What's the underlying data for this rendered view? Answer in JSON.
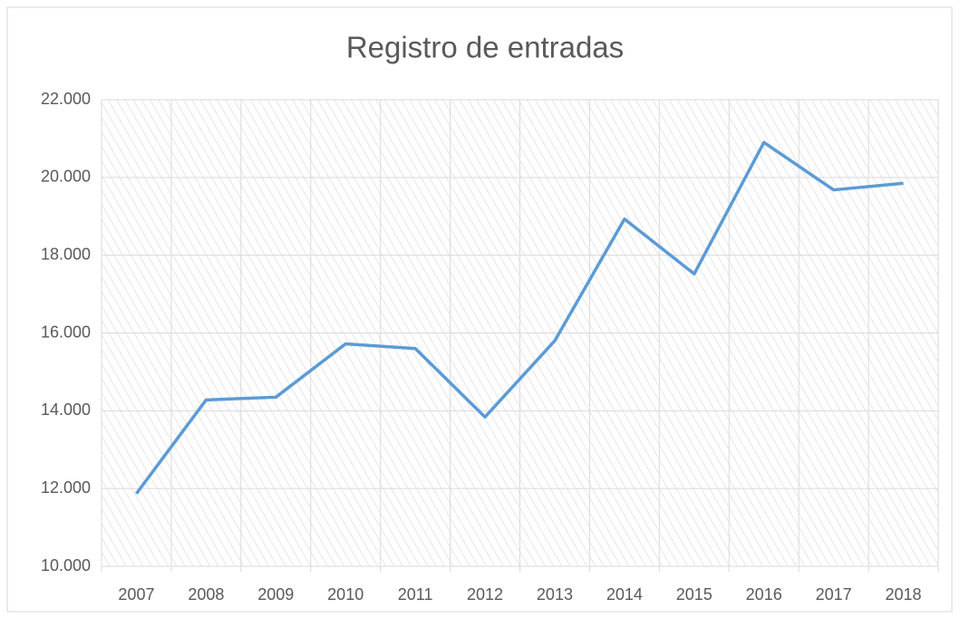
{
  "chart_data": {
    "type": "line",
    "title": "Registro de entradas",
    "categories": [
      "2007",
      "2008",
      "2009",
      "2010",
      "2011",
      "2012",
      "2013",
      "2014",
      "2015",
      "2016",
      "2017",
      "2018"
    ],
    "series": [
      {
        "name": "Registro de entradas",
        "color": "#5b9bd5",
        "values": [
          11870,
          14280,
          14350,
          15720,
          15600,
          13840,
          15800,
          18930,
          17520,
          20900,
          19680,
          19850
        ]
      }
    ],
    "ylim": [
      10000,
      22000
    ],
    "yticks": [
      {
        "value": 10000,
        "label": "10.000"
      },
      {
        "value": 12000,
        "label": "12.000"
      },
      {
        "value": 14000,
        "label": "14.000"
      },
      {
        "value": 16000,
        "label": "16.000"
      },
      {
        "value": 18000,
        "label": "18.000"
      },
      {
        "value": 20000,
        "label": "20.000"
      },
      {
        "value": 22000,
        "label": "22.000"
      }
    ],
    "grid": true
  }
}
